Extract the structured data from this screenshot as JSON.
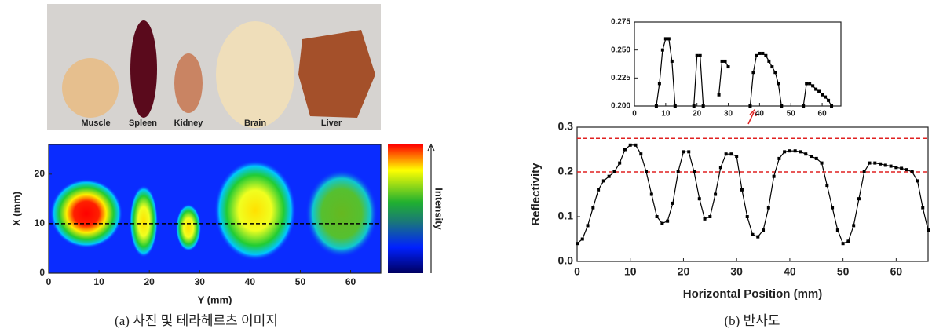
{
  "photo": {
    "labels": [
      "Muscle",
      "Spleen",
      "Kidney",
      "Brain",
      "Liver"
    ]
  },
  "captions": [
    "(a) 사진 및 테라헤르츠 이미지",
    "(b) 반사도"
  ],
  "chart_data": [
    {
      "type": "heatmap",
      "xlabel": "Y (mm)",
      "ylabel": "X (mm)",
      "colorbar_label": "Intensity",
      "xlim": [
        0,
        66
      ],
      "ylim": [
        0,
        26
      ],
      "xticks": [
        0,
        10,
        20,
        30,
        40,
        50,
        60
      ],
      "yticks": [
        0,
        10,
        20
      ],
      "reference_lines": [
        10
      ],
      "reference_color": "#000000"
    },
    {
      "type": "line",
      "xlabel": "Horizontal Position (mm)",
      "ylabel": "Reflectivity",
      "color": "#000000",
      "x": [
        0,
        1,
        2,
        3,
        4,
        5,
        6,
        7,
        8,
        9,
        10,
        11,
        12,
        13,
        14,
        15,
        16,
        17,
        18,
        19,
        20,
        21,
        22,
        23,
        24,
        25,
        26,
        27,
        28,
        29,
        30,
        31,
        32,
        33,
        34,
        35,
        36,
        37,
        38,
        39,
        40,
        41,
        42,
        43,
        44,
        45,
        46,
        47,
        48,
        49,
        50,
        51,
        52,
        53,
        54,
        55,
        56,
        57,
        58,
        59,
        60,
        61,
        62,
        63,
        64,
        65,
        66
      ],
      "values": [
        0.04,
        0.05,
        0.08,
        0.12,
        0.16,
        0.18,
        0.19,
        0.2,
        0.22,
        0.25,
        0.26,
        0.26,
        0.24,
        0.2,
        0.15,
        0.1,
        0.085,
        0.09,
        0.13,
        0.2,
        0.245,
        0.245,
        0.2,
        0.14,
        0.095,
        0.1,
        0.15,
        0.21,
        0.24,
        0.24,
        0.235,
        0.16,
        0.1,
        0.06,
        0.055,
        0.07,
        0.12,
        0.19,
        0.23,
        0.245,
        0.247,
        0.247,
        0.245,
        0.24,
        0.235,
        0.23,
        0.22,
        0.17,
        0.12,
        0.07,
        0.04,
        0.045,
        0.08,
        0.14,
        0.2,
        0.22,
        0.22,
        0.218,
        0.215,
        0.213,
        0.21,
        0.208,
        0.205,
        0.2,
        0.18,
        0.12,
        0.07
      ],
      "xlim": [
        0,
        66
      ],
      "ylim": [
        0,
        0.3
      ],
      "xticks": [
        0,
        10,
        20,
        30,
        40,
        50,
        60
      ],
      "yticks": [
        {
          "value": 0,
          "label": "0.0"
        },
        0.1,
        0.2,
        0.3
      ],
      "reference_lines": [
        0.2,
        0.275
      ],
      "reference_color": "#e02020"
    },
    {
      "type": "line",
      "color": "#000000",
      "x": [
        7,
        8,
        9,
        10,
        11,
        12,
        13,
        14,
        19,
        20,
        21,
        22,
        23,
        27,
        28,
        29,
        30,
        31,
        37,
        38,
        39,
        40,
        41,
        42,
        43,
        44,
        45,
        46,
        47,
        48,
        54,
        55,
        56,
        57,
        58,
        59,
        60,
        61,
        62,
        63
      ],
      "values": [
        0.2,
        0.22,
        0.25,
        0.26,
        0.26,
        0.24,
        0.2,
        null,
        0.2,
        0.245,
        0.245,
        0.2,
        null,
        0.21,
        0.24,
        0.24,
        0.235,
        null,
        0.2,
        0.23,
        0.245,
        0.247,
        0.247,
        0.245,
        0.24,
        0.235,
        0.23,
        0.22,
        0.2,
        null,
        0.2,
        0.22,
        0.22,
        0.218,
        0.215,
        0.213,
        0.21,
        0.208,
        0.205,
        0.2
      ],
      "xlim": [
        0,
        66
      ],
      "ylim": [
        0.2,
        0.275
      ],
      "xticks": [
        0,
        10,
        20,
        30,
        40,
        50,
        60
      ],
      "yticks": [
        {
          "value": 0.2,
          "label": "0.200"
        },
        {
          "value": 0.225,
          "label": "0.225"
        },
        {
          "value": 0.25,
          "label": "0.250"
        },
        {
          "value": 0.275,
          "label": "0.275"
        }
      ]
    }
  ]
}
